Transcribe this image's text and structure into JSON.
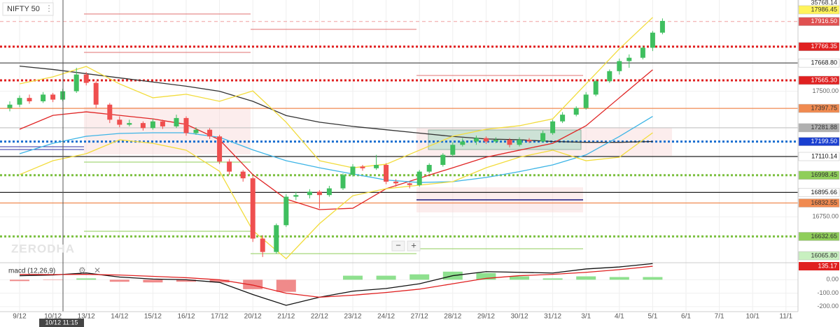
{
  "chart_data": {
    "type": "candlestick",
    "title": "NIFTY 50",
    "indicator_label": "macd (12,26,9)",
    "watermark": "ZERODHA",
    "crosshair_label": "10/12 11:15",
    "categories": [
      "9/12",
      "10/12",
      "13/12",
      "14/12",
      "15/12",
      "16/12",
      "17/12",
      "20/12",
      "21/12",
      "22/12",
      "23/12",
      "24/12",
      "27/12",
      "28/12",
      "29/12",
      "30/12",
      "31/12",
      "3/1",
      "4/1",
      "5/1",
      "6/1",
      "7/1",
      "10/1",
      "11/1"
    ],
    "up_color": "#3fbf5f",
    "down_color": "#ef4f4f",
    "candles": [
      [
        [
          17400,
          17440,
          17380,
          17420
        ],
        [
          17420,
          17475,
          17405,
          17460
        ],
        [
          17460,
          17480,
          17425,
          17440
        ]
      ],
      [
        [
          17440,
          17495,
          17430,
          17480
        ],
        [
          17480,
          17490,
          17435,
          17450
        ],
        [
          17450,
          17515,
          17440,
          17500
        ]
      ],
      [
        [
          17500,
          17640,
          17490,
          17600
        ],
        [
          17600,
          17615,
          17535,
          17550
        ],
        [
          17550,
          17560,
          17400,
          17420
        ]
      ],
      [
        [
          17420,
          17430,
          17310,
          17330
        ],
        [
          17330,
          17350,
          17285,
          17300
        ],
        [
          17300,
          17330,
          17290,
          17310
        ]
      ],
      [
        [
          17310,
          17320,
          17265,
          17280
        ],
        [
          17280,
          17335,
          17270,
          17320
        ],
        [
          17320,
          17330,
          17275,
          17290
        ]
      ],
      [
        [
          17290,
          17360,
          17280,
          17340
        ],
        [
          17340,
          17350,
          17235,
          17250
        ],
        [
          17250,
          17285,
          17240,
          17270
        ]
      ],
      [
        [
          17270,
          17280,
          17215,
          17230
        ],
        [
          17230,
          17240,
          17065,
          17080
        ],
        [
          17080,
          17095,
          17000,
          17020
        ]
      ],
      [
        [
          17020,
          17030,
          16960,
          16980
        ],
        [
          16980,
          16990,
          16600,
          16620
        ],
        [
          16620,
          16640,
          16510,
          16540
        ]
      ],
      [
        [
          16540,
          16710,
          16530,
          16700
        ],
        [
          16700,
          16885,
          16690,
          16870
        ],
        [
          16870,
          16900,
          16850,
          16880
        ]
      ],
      [
        [
          16880,
          16915,
          16860,
          16900
        ],
        [
          16900,
          16910,
          16800,
          16880
        ],
        [
          16880,
          16935,
          16870,
          16920
        ]
      ],
      [
        [
          16920,
          17010,
          16910,
          17000
        ],
        [
          17000,
          17065,
          16990,
          17050
        ],
        [
          17050,
          17060,
          17025,
          17040
        ]
      ],
      [
        [
          17040,
          17120,
          17030,
          17060
        ],
        [
          17060,
          17070,
          16945,
          16960
        ],
        [
          16960,
          16975,
          16930,
          16950
        ]
      ],
      [
        [
          16950,
          16955,
          16920,
          16940
        ],
        [
          16940,
          17030,
          16930,
          17020
        ],
        [
          17020,
          17070,
          17010,
          17060
        ]
      ],
      [
        [
          17060,
          17130,
          17050,
          17120
        ],
        [
          17120,
          17195,
          17110,
          17180
        ],
        [
          17180,
          17220,
          17170,
          17200
        ]
      ],
      [
        [
          17200,
          17235,
          17180,
          17220
        ],
        [
          17220,
          17230,
          17185,
          17200
        ],
        [
          17200,
          17225,
          17190,
          17210
        ]
      ],
      [
        [
          17210,
          17220,
          17165,
          17180
        ],
        [
          17180,
          17225,
          17170,
          17210
        ],
        [
          17210,
          17220,
          17190,
          17200
        ]
      ],
      [
        [
          17200,
          17265,
          17195,
          17250
        ],
        [
          17250,
          17330,
          17240,
          17320
        ],
        [
          17320,
          17375,
          17310,
          17360
        ]
      ],
      [
        [
          17360,
          17410,
          17350,
          17400
        ],
        [
          17400,
          17495,
          17390,
          17480
        ],
        [
          17480,
          17570,
          17470,
          17560
        ]
      ],
      [
        [
          17560,
          17630,
          17550,
          17620
        ],
        [
          17620,
          17695,
          17600,
          17680
        ],
        [
          17680,
          17720,
          17640,
          17700
        ]
      ],
      [
        [
          17700,
          17770,
          17690,
          17760
        ],
        [
          17760,
          17860,
          17740,
          17850
        ],
        [
          17850,
          17935,
          17840,
          17920
        ]
      ],
      null,
      null,
      null,
      null
    ],
    "series": [
      {
        "color": "#333333",
        "values": [
          17650,
          17630,
          17605,
          17580,
          17555,
          17530,
          17500,
          17440,
          17355,
          17315,
          17290,
          17270,
          17250,
          17230,
          17215,
          17210,
          17200,
          17195,
          17195,
          17200,
          null,
          null,
          null,
          null
        ]
      },
      {
        "color": "#e02424",
        "values": [
          17273,
          17356,
          17377,
          17356,
          17335,
          17302,
          17210,
          17002,
          16856,
          16793,
          16801,
          16918,
          16981,
          17043,
          17106,
          17148,
          17189,
          17294,
          17461,
          17628,
          null,
          null,
          null,
          null
        ]
      },
      {
        "color": "#3cb4e6",
        "values": [
          17127,
          17189,
          17231,
          17248,
          17252,
          17252,
          17225,
          17150,
          17085,
          17043,
          17006,
          16970,
          16955,
          16960,
          16985,
          17020,
          17060,
          17120,
          17230,
          17350,
          null,
          null,
          null,
          null
        ]
      },
      {
        "color": "#f2dc3c",
        "values": [
          17544,
          17586,
          17648,
          17544,
          17461,
          17482,
          17440,
          17502,
          17315,
          17085,
          17043,
          17064,
          17148,
          17231,
          17273,
          17294,
          17335,
          17544,
          17753,
          17941,
          null,
          null,
          null,
          null
        ]
      },
      {
        "color": "#f2dc3c",
        "values": [
          17002,
          17085,
          17127,
          17210,
          17189,
          17148,
          17022,
          16668,
          16500,
          16709,
          16876,
          16918,
          16939,
          16960,
          17043,
          17106,
          17148,
          17085,
          17106,
          17252,
          null,
          null,
          null,
          null
        ]
      }
    ],
    "ylim": [
      16480,
      18045
    ],
    "yticks": [
      {
        "value": 17500,
        "label": "17500.00"
      },
      {
        "value": 16750,
        "label": "16750.00"
      }
    ],
    "price_tags": [
      {
        "value": 35768.14,
        "label": "35768.14",
        "color": "#ffffff",
        "text_color": "#333333",
        "line": "none"
      },
      {
        "value": 17986.45,
        "label": "17986.45",
        "color": "#fff35a",
        "text_color": "#333333",
        "line": "none"
      },
      {
        "value": 17916.5,
        "label": "17916.50",
        "color": "#e05050",
        "text_color": "#ffffff",
        "line": "dashed",
        "line_color": "#f0a0a0"
      },
      {
        "value": 17766.35,
        "label": "17766.35",
        "color": "#e02020",
        "text_color": "#ffffff",
        "line": "dotted",
        "line_color": "#e02020"
      },
      {
        "value": 17668.8,
        "label": "17668.80",
        "color": "#ffffff",
        "text_color": "#111111",
        "line": "solid",
        "line_color": "#555555"
      },
      {
        "value": 17565.3,
        "label": "17565.30",
        "color": "#e02020",
        "text_color": "#ffffff",
        "line": "dotted",
        "line_color": "#e02020"
      },
      {
        "value": 17397.75,
        "label": "17397.75",
        "color": "#f08a50",
        "text_color": "#333333",
        "line": "solid",
        "line_color": "#f08a50"
      },
      {
        "value": 17281.88,
        "label": "17281.88",
        "color": "#b0b0b0",
        "text_color": "#333333",
        "line": "solid",
        "line_color": "#c8c8c8"
      },
      {
        "value": 17199.5,
        "label": "17199.50",
        "color": "#1a3fd0",
        "text_color": "#ffffff",
        "line": "dotted",
        "line_color": "#1a6fd0"
      },
      {
        "value": 17110.14,
        "label": "17110.14",
        "color": "#ffffff",
        "text_color": "#111111",
        "line": "solid",
        "line_color": "#222222"
      },
      {
        "value": 16998.45,
        "label": "16998.45",
        "color": "#8fce5a",
        "text_color": "#333333",
        "line": "dotted",
        "line_color": "#7cc040"
      },
      {
        "value": 16895.66,
        "label": "16895.66",
        "color": "#ffffff",
        "text_color": "#111111",
        "line": "solid",
        "line_color": "#222222"
      },
      {
        "value": 16832.55,
        "label": "16832.55",
        "color": "#f08a50",
        "text_color": "#333333",
        "line": "solid",
        "line_color": "#f08a50"
      },
      {
        "value": 16632.65,
        "label": "16632.65",
        "color": "#8fce5a",
        "text_color": "#333333",
        "line": "dotted",
        "line_color": "#7cc040"
      },
      {
        "value": 16065.8,
        "label": "16065.80",
        "color": "#c8f0c0",
        "text_color": "#333333",
        "line": "none"
      }
    ],
    "macd": {
      "ylim": [
        -237,
        116
      ],
      "yticks": [
        {
          "value": 0,
          "label": "0.00"
        },
        {
          "value": -100,
          "label": "-100.00"
        },
        {
          "value": -200,
          "label": "-200.00"
        }
      ],
      "last": {
        "value": 135.17,
        "label": "135.17"
      },
      "macd_color": "#111111",
      "signal_color": "#e02020",
      "hist_up": "#8ee08e",
      "hist_down": "#f08a8a",
      "macd_values": [
        30,
        35,
        50,
        20,
        5,
        0,
        -20,
        -110,
        -190,
        -130,
        -85,
        -65,
        -30,
        30,
        60,
        55,
        50,
        80,
        95,
        120,
        null,
        null,
        null,
        null
      ],
      "signal_values": [
        40,
        38,
        40,
        35,
        25,
        15,
        0,
        -40,
        -100,
        -130,
        -115,
        -95,
        -70,
        -30,
        10,
        30,
        40,
        55,
        75,
        100,
        null,
        null,
        null,
        null
      ],
      "hist_values": [
        -10,
        -3,
        10,
        -15,
        -20,
        -15,
        -20,
        -70,
        -90,
        0,
        30,
        30,
        40,
        60,
        50,
        25,
        10,
        25,
        20,
        20,
        null,
        null,
        null,
        null
      ]
    }
  }
}
